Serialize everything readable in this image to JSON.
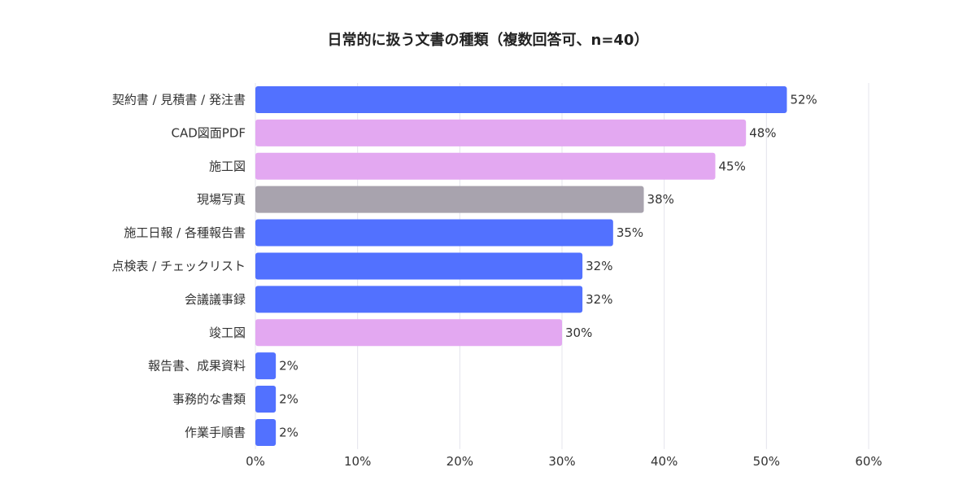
{
  "chart_data": {
    "type": "bar",
    "orientation": "horizontal",
    "title": "日常的に扱う文書の種類（複数回答可、n=40）",
    "xlabel": "",
    "ylabel": "",
    "categories": [
      "契約書 / 見積書 / 発注書",
      "CAD図面PDF",
      "施工図",
      "現場写真",
      "施工日報 / 各種報告書",
      "点検表 / チェックリスト",
      "会議議事録",
      "竣工図",
      "報告書、成果資料",
      "事務的な書類",
      "作業手順書"
    ],
    "values": [
      52,
      48,
      45,
      38,
      35,
      32,
      32,
      30,
      2,
      2,
      2
    ],
    "value_labels": [
      "52%",
      "48%",
      "45%",
      "38%",
      "35%",
      "32%",
      "32%",
      "30%",
      "2%",
      "2%",
      "2%"
    ],
    "bar_colors": [
      "#5271ff",
      "#e3a8f1",
      "#e3a8f1",
      "#a8a3ae",
      "#5271ff",
      "#5271ff",
      "#5271ff",
      "#e3a8f1",
      "#5271ff",
      "#5271ff",
      "#5271ff"
    ],
    "xlim": [
      0,
      60
    ],
    "xticks": [
      0,
      10,
      20,
      30,
      40,
      50,
      60
    ],
    "xtick_labels": [
      "0%",
      "10%",
      "20%",
      "30%",
      "40%",
      "50%",
      "60%"
    ],
    "grid": true,
    "legend": "none"
  }
}
